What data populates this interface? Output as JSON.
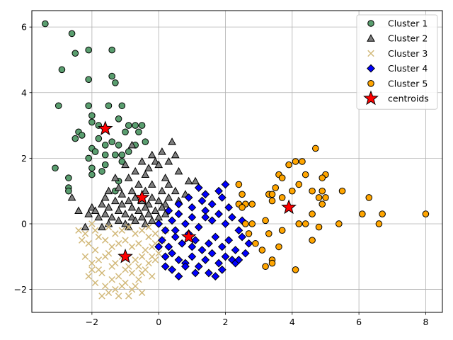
{
  "chart_data": {
    "type": "scatter",
    "title": "",
    "xlabel": "",
    "ylabel": "",
    "xlim": [
      -3.8,
      8.5
    ],
    "ylim": [
      -2.7,
      6.5
    ],
    "grid": true,
    "legend_placement": "top-right",
    "x_ticks": [
      -2,
      0,
      2,
      4,
      6,
      8
    ],
    "y_ticks": [
      -2,
      0,
      2,
      4,
      6
    ],
    "x_tick_labels": [
      "−2",
      "0",
      "2",
      "4",
      "6",
      "8"
    ],
    "y_tick_labels": [
      "−2",
      "0",
      "2",
      "4",
      "6"
    ],
    "series": [
      {
        "name": "Cluster 1",
        "marker": "circle",
        "color": "#5a9e6f",
        "points": [
          [
            -3.4,
            6.1
          ],
          [
            -2.6,
            5.8
          ],
          [
            -2.5,
            5.2
          ],
          [
            -2.1,
            5.3
          ],
          [
            -1.4,
            5.3
          ],
          [
            -2.9,
            4.7
          ],
          [
            -2.1,
            4.4
          ],
          [
            -1.4,
            4.5
          ],
          [
            -1.3,
            4.3
          ],
          [
            -3.0,
            3.6
          ],
          [
            -2.1,
            3.6
          ],
          [
            -1.5,
            3.6
          ],
          [
            -1.1,
            3.6
          ],
          [
            -2.0,
            3.3
          ],
          [
            -2.0,
            3.1
          ],
          [
            -1.8,
            3.0
          ],
          [
            -1.2,
            3.2
          ],
          [
            -0.9,
            3.0
          ],
          [
            -0.7,
            3.0
          ],
          [
            -0.5,
            3.0
          ],
          [
            -2.4,
            2.8
          ],
          [
            -2.3,
            2.7
          ],
          [
            -1.0,
            2.8
          ],
          [
            -0.6,
            2.8
          ],
          [
            -2.5,
            2.6
          ],
          [
            -1.8,
            2.6
          ],
          [
            -1.4,
            2.5
          ],
          [
            -0.4,
            2.5
          ],
          [
            -0.7,
            2.4
          ],
          [
            -1.2,
            2.4
          ],
          [
            -1.6,
            2.4
          ],
          [
            -2.0,
            2.3
          ],
          [
            -1.9,
            2.2
          ],
          [
            -0.9,
            2.2
          ],
          [
            -1.3,
            2.1
          ],
          [
            -1.6,
            2.1
          ],
          [
            -1.1,
            2.1
          ],
          [
            -2.1,
            2.0
          ],
          [
            -1.1,
            1.9
          ],
          [
            -1.6,
            1.8
          ],
          [
            -2.0,
            1.7
          ],
          [
            -3.1,
            1.7
          ],
          [
            -1.7,
            1.6
          ],
          [
            -2.0,
            1.5
          ],
          [
            -2.7,
            1.4
          ],
          [
            -1.2,
            1.3
          ],
          [
            -2.7,
            1.1
          ],
          [
            -2.7,
            1.0
          ],
          [
            -1.3,
            1.0
          ]
        ]
      },
      {
        "name": "Cluster 2",
        "marker": "triangle",
        "color": "#7f7f7f",
        "points": [
          [
            -0.8,
            2.4
          ],
          [
            0.4,
            2.5
          ],
          [
            0.1,
            2.2
          ],
          [
            -0.2,
            2.1
          ],
          [
            0.5,
            2.1
          ],
          [
            -0.5,
            1.9
          ],
          [
            -0.1,
            1.9
          ],
          [
            0.3,
            1.9
          ],
          [
            -1.0,
            1.8
          ],
          [
            -0.3,
            1.7
          ],
          [
            0.0,
            1.8
          ],
          [
            0.6,
            1.6
          ],
          [
            -0.7,
            1.6
          ],
          [
            -0.4,
            1.5
          ],
          [
            0.2,
            1.4
          ],
          [
            -1.3,
            1.4
          ],
          [
            -0.9,
            1.4
          ],
          [
            0.9,
            1.3
          ],
          [
            1.1,
            1.3
          ],
          [
            -0.6,
            1.2
          ],
          [
            -0.2,
            1.2
          ],
          [
            0.3,
            1.2
          ],
          [
            -1.2,
            1.1
          ],
          [
            -1.5,
            1.0
          ],
          [
            -0.8,
            1.0
          ],
          [
            -0.4,
            1.0
          ],
          [
            0.1,
            1.0
          ],
          [
            0.5,
            1.0
          ],
          [
            0.8,
            0.9
          ],
          [
            -1.1,
            0.9
          ],
          [
            -1.6,
            0.8
          ],
          [
            -0.7,
            0.8
          ],
          [
            -0.2,
            0.8
          ],
          [
            0.3,
            0.8
          ],
          [
            -2.6,
            0.8
          ],
          [
            -1.3,
            0.7
          ],
          [
            -0.9,
            0.7
          ],
          [
            -0.5,
            0.7
          ],
          [
            0.0,
            0.7
          ],
          [
            0.6,
            0.7
          ],
          [
            -1.7,
            0.6
          ],
          [
            -1.1,
            0.6
          ],
          [
            -0.3,
            0.6
          ],
          [
            0.2,
            0.6
          ],
          [
            -2.0,
            0.5
          ],
          [
            -1.5,
            0.5
          ],
          [
            -0.8,
            0.5
          ],
          [
            -0.4,
            0.5
          ],
          [
            0.1,
            0.5
          ],
          [
            -2.4,
            0.4
          ],
          [
            -1.9,
            0.4
          ],
          [
            -1.2,
            0.4
          ],
          [
            -0.6,
            0.4
          ],
          [
            -0.1,
            0.4
          ],
          [
            -2.1,
            0.3
          ],
          [
            -1.6,
            0.3
          ],
          [
            -1.0,
            0.3
          ],
          [
            -0.3,
            0.3
          ],
          [
            0.2,
            0.3
          ],
          [
            -1.8,
            0.2
          ],
          [
            -1.4,
            0.2
          ],
          [
            -0.8,
            0.2
          ],
          [
            -0.5,
            0.2
          ],
          [
            0.0,
            0.2
          ],
          [
            -1.2,
            0.1
          ],
          [
            -0.7,
            0.1
          ],
          [
            -0.2,
            0.1
          ],
          [
            -1.5,
            0.0
          ],
          [
            -1.0,
            0.0
          ],
          [
            -0.4,
            0.0
          ],
          [
            -2.2,
            -0.1
          ],
          [
            -1.7,
            -0.1
          ],
          [
            -0.9,
            -0.1
          ]
        ]
      },
      {
        "name": "Cluster 3",
        "marker": "x",
        "color": "#d2b97a",
        "points": [
          [
            -2.4,
            -0.2
          ],
          [
            -2.2,
            -0.3
          ],
          [
            -2.0,
            0.0
          ],
          [
            -1.8,
            -0.4
          ],
          [
            -1.5,
            -0.1
          ],
          [
            -1.3,
            -0.3
          ],
          [
            -1.1,
            -0.2
          ],
          [
            -0.9,
            -0.1
          ],
          [
            -0.7,
            -0.3
          ],
          [
            -0.5,
            -0.2
          ],
          [
            -0.3,
            -0.4
          ],
          [
            -0.1,
            -0.3
          ],
          [
            0.1,
            -0.5
          ],
          [
            -2.1,
            -0.6
          ],
          [
            -1.9,
            -0.8
          ],
          [
            -1.6,
            -0.5
          ],
          [
            -1.4,
            -0.7
          ],
          [
            -1.2,
            -0.6
          ],
          [
            -1.0,
            -0.5
          ],
          [
            -0.8,
            -0.7
          ],
          [
            -0.6,
            -0.6
          ],
          [
            -0.4,
            -0.8
          ],
          [
            -0.2,
            -0.7
          ],
          [
            0.0,
            -0.9
          ],
          [
            -2.2,
            -1.0
          ],
          [
            -1.8,
            -1.1
          ],
          [
            -1.5,
            -0.9
          ],
          [
            -1.3,
            -1.2
          ],
          [
            -1.1,
            -1.0
          ],
          [
            -0.9,
            -1.3
          ],
          [
            -0.7,
            -1.1
          ],
          [
            -0.5,
            -1.0
          ],
          [
            -0.3,
            -1.2
          ],
          [
            -0.1,
            -1.1
          ],
          [
            -2.0,
            -1.4
          ],
          [
            -1.7,
            -1.5
          ],
          [
            -1.4,
            -1.3
          ],
          [
            -1.2,
            -1.6
          ],
          [
            -1.0,
            -1.4
          ],
          [
            -0.8,
            -1.5
          ],
          [
            -0.6,
            -1.7
          ],
          [
            -0.4,
            -1.4
          ],
          [
            -0.2,
            -1.6
          ],
          [
            -1.9,
            -1.8
          ],
          [
            -1.6,
            -1.9
          ],
          [
            -1.3,
            -2.0
          ],
          [
            -1.0,
            -1.8
          ],
          [
            -0.7,
            -1.9
          ],
          [
            -0.5,
            -2.1
          ],
          [
            -1.7,
            -2.2
          ],
          [
            -1.2,
            -2.2
          ],
          [
            -0.9,
            -2.2
          ],
          [
            -2.3,
            -0.5
          ],
          [
            -1.9,
            -0.2
          ],
          [
            -0.3,
            -0.1
          ],
          [
            0.2,
            -0.2
          ],
          [
            -0.5,
            -1.5
          ],
          [
            -1.4,
            -1.7
          ],
          [
            -1.8,
            -1.4
          ],
          [
            -2.1,
            -1.6
          ],
          [
            -0.1,
            -0.6
          ],
          [
            -0.2,
            -1.0
          ],
          [
            -0.6,
            -1.3
          ],
          [
            -1.5,
            -2.1
          ],
          [
            -1.1,
            -1.9
          ],
          [
            -0.8,
            -2.0
          ],
          [
            -2.0,
            -1.2
          ],
          [
            -1.6,
            -1.0
          ]
        ]
      },
      {
        "name": "Cluster 4",
        "marker": "diamond",
        "color": "#0000ff",
        "points": [
          [
            0.0,
            0.0
          ],
          [
            0.2,
            -0.2
          ],
          [
            0.4,
            0.1
          ],
          [
            0.6,
            0.3
          ],
          [
            0.8,
            0.0
          ],
          [
            1.0,
            0.2
          ],
          [
            1.2,
            -0.1
          ],
          [
            1.4,
            0.4
          ],
          [
            1.6,
            0.1
          ],
          [
            1.8,
            0.3
          ],
          [
            2.0,
            0.0
          ],
          [
            2.2,
            0.2
          ],
          [
            2.4,
            -0.2
          ],
          [
            0.1,
            -0.5
          ],
          [
            0.3,
            -0.7
          ],
          [
            0.5,
            -0.4
          ],
          [
            0.7,
            -0.6
          ],
          [
            0.9,
            -0.3
          ],
          [
            1.1,
            -0.5
          ],
          [
            1.3,
            -0.8
          ],
          [
            1.5,
            -0.6
          ],
          [
            1.7,
            -0.4
          ],
          [
            1.9,
            -0.7
          ],
          [
            2.1,
            -0.5
          ],
          [
            2.3,
            -0.8
          ],
          [
            2.5,
            -0.4
          ],
          [
            0.2,
            -1.0
          ],
          [
            0.4,
            -0.9
          ],
          [
            0.6,
            -1.1
          ],
          [
            0.8,
            -1.2
          ],
          [
            1.0,
            -1.0
          ],
          [
            1.2,
            -1.3
          ],
          [
            1.4,
            -1.1
          ],
          [
            1.6,
            -0.9
          ],
          [
            1.8,
            -1.2
          ],
          [
            2.0,
            -1.0
          ],
          [
            2.2,
            -1.1
          ],
          [
            0.4,
            -1.4
          ],
          [
            0.6,
            -1.6
          ],
          [
            0.8,
            -1.3
          ],
          [
            1.1,
            -1.5
          ],
          [
            1.5,
            -1.5
          ],
          [
            1.9,
            -1.4
          ],
          [
            2.3,
            -1.2
          ],
          [
            2.6,
            -0.9
          ],
          [
            1.0,
            0.5
          ],
          [
            1.3,
            0.7
          ],
          [
            1.6,
            0.6
          ],
          [
            1.9,
            0.8
          ],
          [
            2.1,
            0.5
          ],
          [
            1.2,
            1.1
          ],
          [
            1.4,
            0.9
          ],
          [
            1.8,
            1.0
          ],
          [
            2.0,
            1.2
          ],
          [
            0.6,
            0.6
          ],
          [
            0.9,
            0.8
          ],
          [
            0.3,
            0.4
          ],
          [
            0.5,
            -0.2
          ],
          [
            2.7,
            -0.6
          ],
          [
            2.5,
            0.1
          ],
          [
            0.0,
            -0.7
          ],
          [
            0.2,
            -1.3
          ],
          [
            1.7,
            -1.6
          ],
          [
            2.4,
            -1.1
          ],
          [
            1.4,
            0.2
          ],
          [
            1.0,
            -0.7
          ]
        ]
      },
      {
        "name": "Cluster 5",
        "marker": "circle",
        "color": "#ffa500",
        "points": [
          [
            4.7,
            2.3
          ],
          [
            4.3,
            1.9
          ],
          [
            4.1,
            1.9
          ],
          [
            3.9,
            1.8
          ],
          [
            5.0,
            1.5
          ],
          [
            3.6,
            1.5
          ],
          [
            3.7,
            1.4
          ],
          [
            4.4,
            1.5
          ],
          [
            4.9,
            1.4
          ],
          [
            2.4,
            1.2
          ],
          [
            3.5,
            1.1
          ],
          [
            4.2,
            1.2
          ],
          [
            4.0,
            1.0
          ],
          [
            4.6,
            1.0
          ],
          [
            4.9,
            1.0
          ],
          [
            5.5,
            1.0
          ],
          [
            2.5,
            0.9
          ],
          [
            3.3,
            0.9
          ],
          [
            3.4,
            0.9
          ],
          [
            3.7,
            0.8
          ],
          [
            4.8,
            0.8
          ],
          [
            5.0,
            0.8
          ],
          [
            6.3,
            0.8
          ],
          [
            2.4,
            0.6
          ],
          [
            2.6,
            0.6
          ],
          [
            4.9,
            0.6
          ],
          [
            3.4,
            0.7
          ],
          [
            6.1,
            0.3
          ],
          [
            6.7,
            0.3
          ],
          [
            8.0,
            0.3
          ],
          [
            2.5,
            0.5
          ],
          [
            4.6,
            0.3
          ],
          [
            3.2,
            0.1
          ],
          [
            4.2,
            0.0
          ],
          [
            4.4,
            0.0
          ],
          [
            5.4,
            0.0
          ],
          [
            6.6,
            0.0
          ],
          [
            2.8,
            0.0
          ],
          [
            2.7,
            -0.3
          ],
          [
            3.3,
            -0.3
          ],
          [
            3.7,
            -0.2
          ],
          [
            4.8,
            -0.1
          ],
          [
            2.9,
            -0.6
          ],
          [
            4.6,
            -0.5
          ],
          [
            3.6,
            -0.7
          ],
          [
            3.1,
            -0.8
          ],
          [
            3.4,
            -1.1
          ],
          [
            3.2,
            -1.3
          ],
          [
            3.4,
            -1.2
          ],
          [
            4.1,
            -1.4
          ],
          [
            2.6,
            0.0
          ],
          [
            2.8,
            0.6
          ]
        ]
      },
      {
        "name": "centroids",
        "marker": "star",
        "color": "#ff0000",
        "points": [
          [
            -1.6,
            2.9
          ],
          [
            -0.5,
            0.8
          ],
          [
            -1.0,
            -1.0
          ],
          [
            0.9,
            -0.4
          ],
          [
            3.9,
            0.5
          ]
        ]
      }
    ]
  }
}
